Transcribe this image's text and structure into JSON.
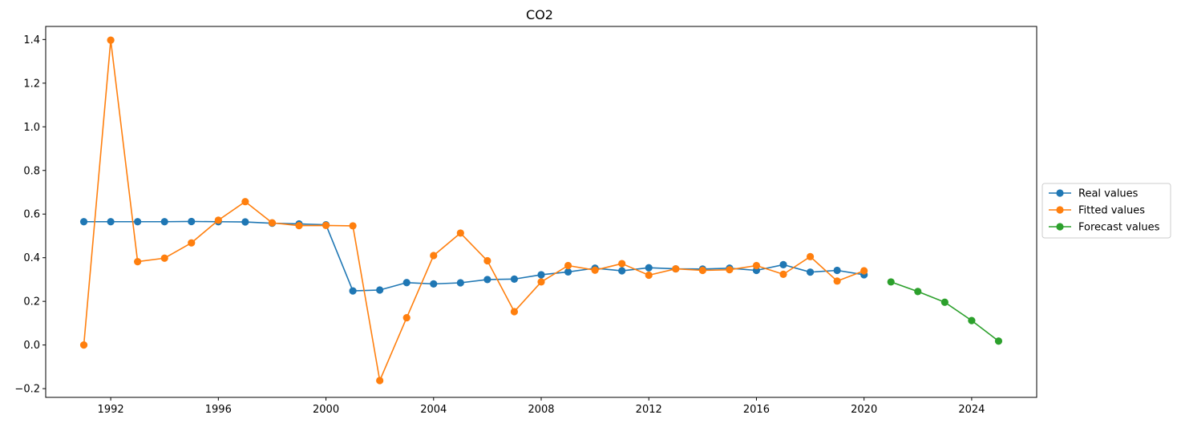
{
  "chart_data": {
    "type": "line",
    "title": "CO2",
    "xlabel": "",
    "ylabel": "",
    "x_axis": "date",
    "xlim": [
      "1989-08",
      "2026-06"
    ],
    "ylim": [
      -0.24,
      1.46
    ],
    "x_ticks": [
      "1992",
      "1996",
      "2000",
      "2004",
      "2008",
      "2012",
      "2016",
      "2020",
      "2024"
    ],
    "y_ticks": [
      "−0.2",
      "0.0",
      "0.2",
      "0.4",
      "0.6",
      "0.8",
      "1.0",
      "1.2",
      "1.4"
    ],
    "grid": false,
    "legend_position": "center-right-outside",
    "series": [
      {
        "name": "Real values",
        "color": "#1f77b4",
        "x": [
          1991,
          1992,
          1993,
          1994,
          1995,
          1996,
          1997,
          1998,
          1999,
          2000,
          2001,
          2002,
          2003,
          2004,
          2005,
          2006,
          2007,
          2008,
          2009,
          2010,
          2011,
          2012,
          2013,
          2014,
          2015,
          2016,
          2017,
          2018,
          2019,
          2020
        ],
        "values": [
          0.565,
          0.565,
          0.565,
          0.565,
          0.566,
          0.565,
          0.564,
          0.558,
          0.555,
          0.551,
          0.248,
          0.252,
          0.286,
          0.28,
          0.285,
          0.3,
          0.302,
          0.322,
          0.335,
          0.352,
          0.34,
          0.354,
          0.349,
          0.348,
          0.352,
          0.342,
          0.368,
          0.334,
          0.342,
          0.322
        ]
      },
      {
        "name": "Fitted values",
        "color": "#ff7f0e",
        "x": [
          1991,
          1992,
          1993,
          1994,
          1995,
          1996,
          1997,
          1998,
          1999,
          2000,
          2001,
          2002,
          2003,
          2004,
          2005,
          2006,
          2007,
          2008,
          2009,
          2010,
          2011,
          2012,
          2013,
          2014,
          2015,
          2016,
          2017,
          2018,
          2019,
          2020
        ],
        "values": [
          0.0,
          1.397,
          0.382,
          0.398,
          0.468,
          0.572,
          0.657,
          0.56,
          0.547,
          0.548,
          0.546,
          -0.163,
          0.125,
          0.41,
          0.513,
          0.386,
          0.153,
          0.289,
          0.364,
          0.343,
          0.373,
          0.32,
          0.349,
          0.342,
          0.345,
          0.364,
          0.324,
          0.405,
          0.293,
          0.34
        ]
      },
      {
        "name": "Forecast values",
        "color": "#2ca02c",
        "x": [
          2021,
          2022,
          2023,
          2024,
          2025
        ],
        "values": [
          0.289,
          0.245,
          0.196,
          0.112,
          0.018
        ]
      }
    ]
  }
}
